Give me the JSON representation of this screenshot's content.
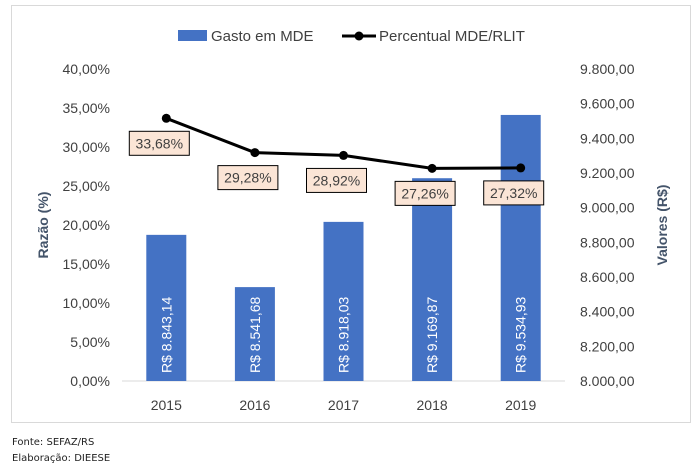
{
  "chart_data": {
    "type": "bar+line",
    "categories": [
      "2015",
      "2016",
      "2017",
      "2018",
      "2019"
    ],
    "series": [
      {
        "name": "Gasto em MDE",
        "type": "bar",
        "axis": "right",
        "color": "#4472C4",
        "values": [
          8843.14,
          8541.68,
          8918.03,
          9169.87,
          9534.93
        ],
        "labels": [
          "R$ 8.843,14",
          "R$ 8.541,68",
          "R$ 8.918,03",
          "R$ 9.169,87",
          "R$ 9.534,93"
        ]
      },
      {
        "name": "Percentual MDE/RLIT",
        "type": "line",
        "axis": "left",
        "color": "#000000",
        "values": [
          33.68,
          29.28,
          28.92,
          27.26,
          27.32
        ],
        "labels": [
          "33,68%",
          "29,28%",
          "28,92%",
          "27,26%",
          "27,32%"
        ]
      }
    ],
    "left_axis": {
      "label": "Razão  (%)",
      "min": 0,
      "max": 40,
      "step": 5,
      "ticks": [
        "0,00%",
        "5,00%",
        "10,00%",
        "15,00%",
        "20,00%",
        "25,00%",
        "30,00%",
        "35,00%",
        "40,00%"
      ]
    },
    "right_axis": {
      "label": "Valores (R$)",
      "min": 8000,
      "max": 9800,
      "step": 200,
      "ticks": [
        "8.000,00",
        "8.200,00",
        "8.400,00",
        "8.600,00",
        "8.800,00",
        "9.000,00",
        "9.200,00",
        "9.400,00",
        "9.600,00",
        "9.800,00"
      ]
    },
    "legend": {
      "placement": "top"
    },
    "grid": false,
    "label_box_fill": "#FBE5D6",
    "axis_text_color": "#404040",
    "axis_title_color": "#44546A"
  },
  "footer": {
    "source": "Fonte: SEFAZ/RS",
    "credit": "Elaboração: DIEESE"
  }
}
